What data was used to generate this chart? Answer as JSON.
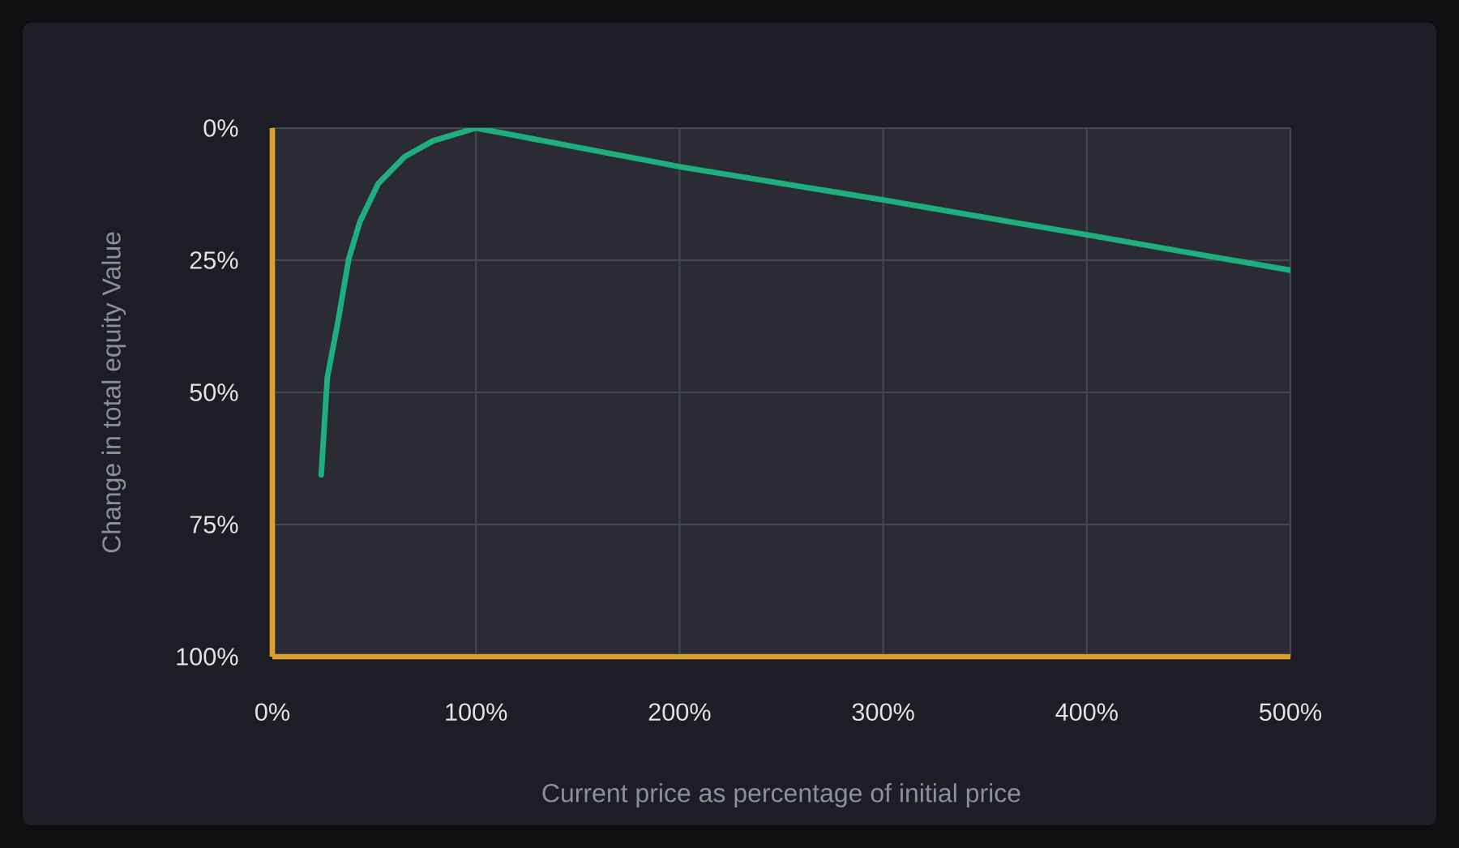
{
  "chart_data": {
    "type": "line",
    "xlabel": "Current price as percentage of initial price",
    "ylabel": "Change in total equity Value",
    "x": [
      24,
      27,
      32,
      37.5,
      43,
      52,
      65,
      79,
      100,
      111,
      200,
      300,
      400,
      500
    ],
    "values": [
      65.6,
      47.2,
      37.1,
      24.8,
      17.7,
      10.5,
      5.4,
      2.4,
      0,
      0.8,
      7.3,
      13.6,
      20.2,
      26.9
    ],
    "color": "#1fae7e",
    "line_style": "solid",
    "grid": true,
    "xlim": [
      0,
      500
    ],
    "ylim": [
      100,
      0
    ],
    "xticks": [
      {
        "value": 0,
        "label": "0%"
      },
      {
        "value": 100,
        "label": "100%"
      },
      {
        "value": 200,
        "label": "200%"
      },
      {
        "value": 300,
        "label": "300%"
      },
      {
        "value": 400,
        "label": "400%"
      },
      {
        "value": 500,
        "label": "500%"
      }
    ],
    "yticks": [
      {
        "value": 0,
        "label": "0%"
      },
      {
        "value": 25,
        "label": "25%"
      },
      {
        "value": 50,
        "label": "50%"
      },
      {
        "value": 75,
        "label": "75%"
      },
      {
        "value": 100,
        "label": "100%"
      }
    ]
  }
}
